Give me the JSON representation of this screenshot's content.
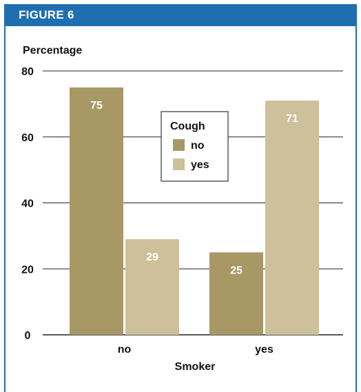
{
  "figure_label": "FIGURE 6",
  "chart_data": {
    "type": "bar",
    "title": "",
    "ylabel": "Percentage",
    "xlabel": "Smoker",
    "categories": [
      "no",
      "yes"
    ],
    "ylim": [
      0,
      80
    ],
    "yticks": [
      0,
      20,
      40,
      60,
      80
    ],
    "grid": true,
    "legend": {
      "title": "Cough",
      "placement": "top-center"
    },
    "series": [
      {
        "name": "no",
        "values": [
          75,
          25
        ],
        "color": "#a89866"
      },
      {
        "name": "yes",
        "values": [
          29,
          71
        ],
        "color": "#cdc09a"
      }
    ],
    "data_labels": [
      [
        "75",
        "25"
      ],
      [
        "29",
        "71"
      ]
    ]
  }
}
